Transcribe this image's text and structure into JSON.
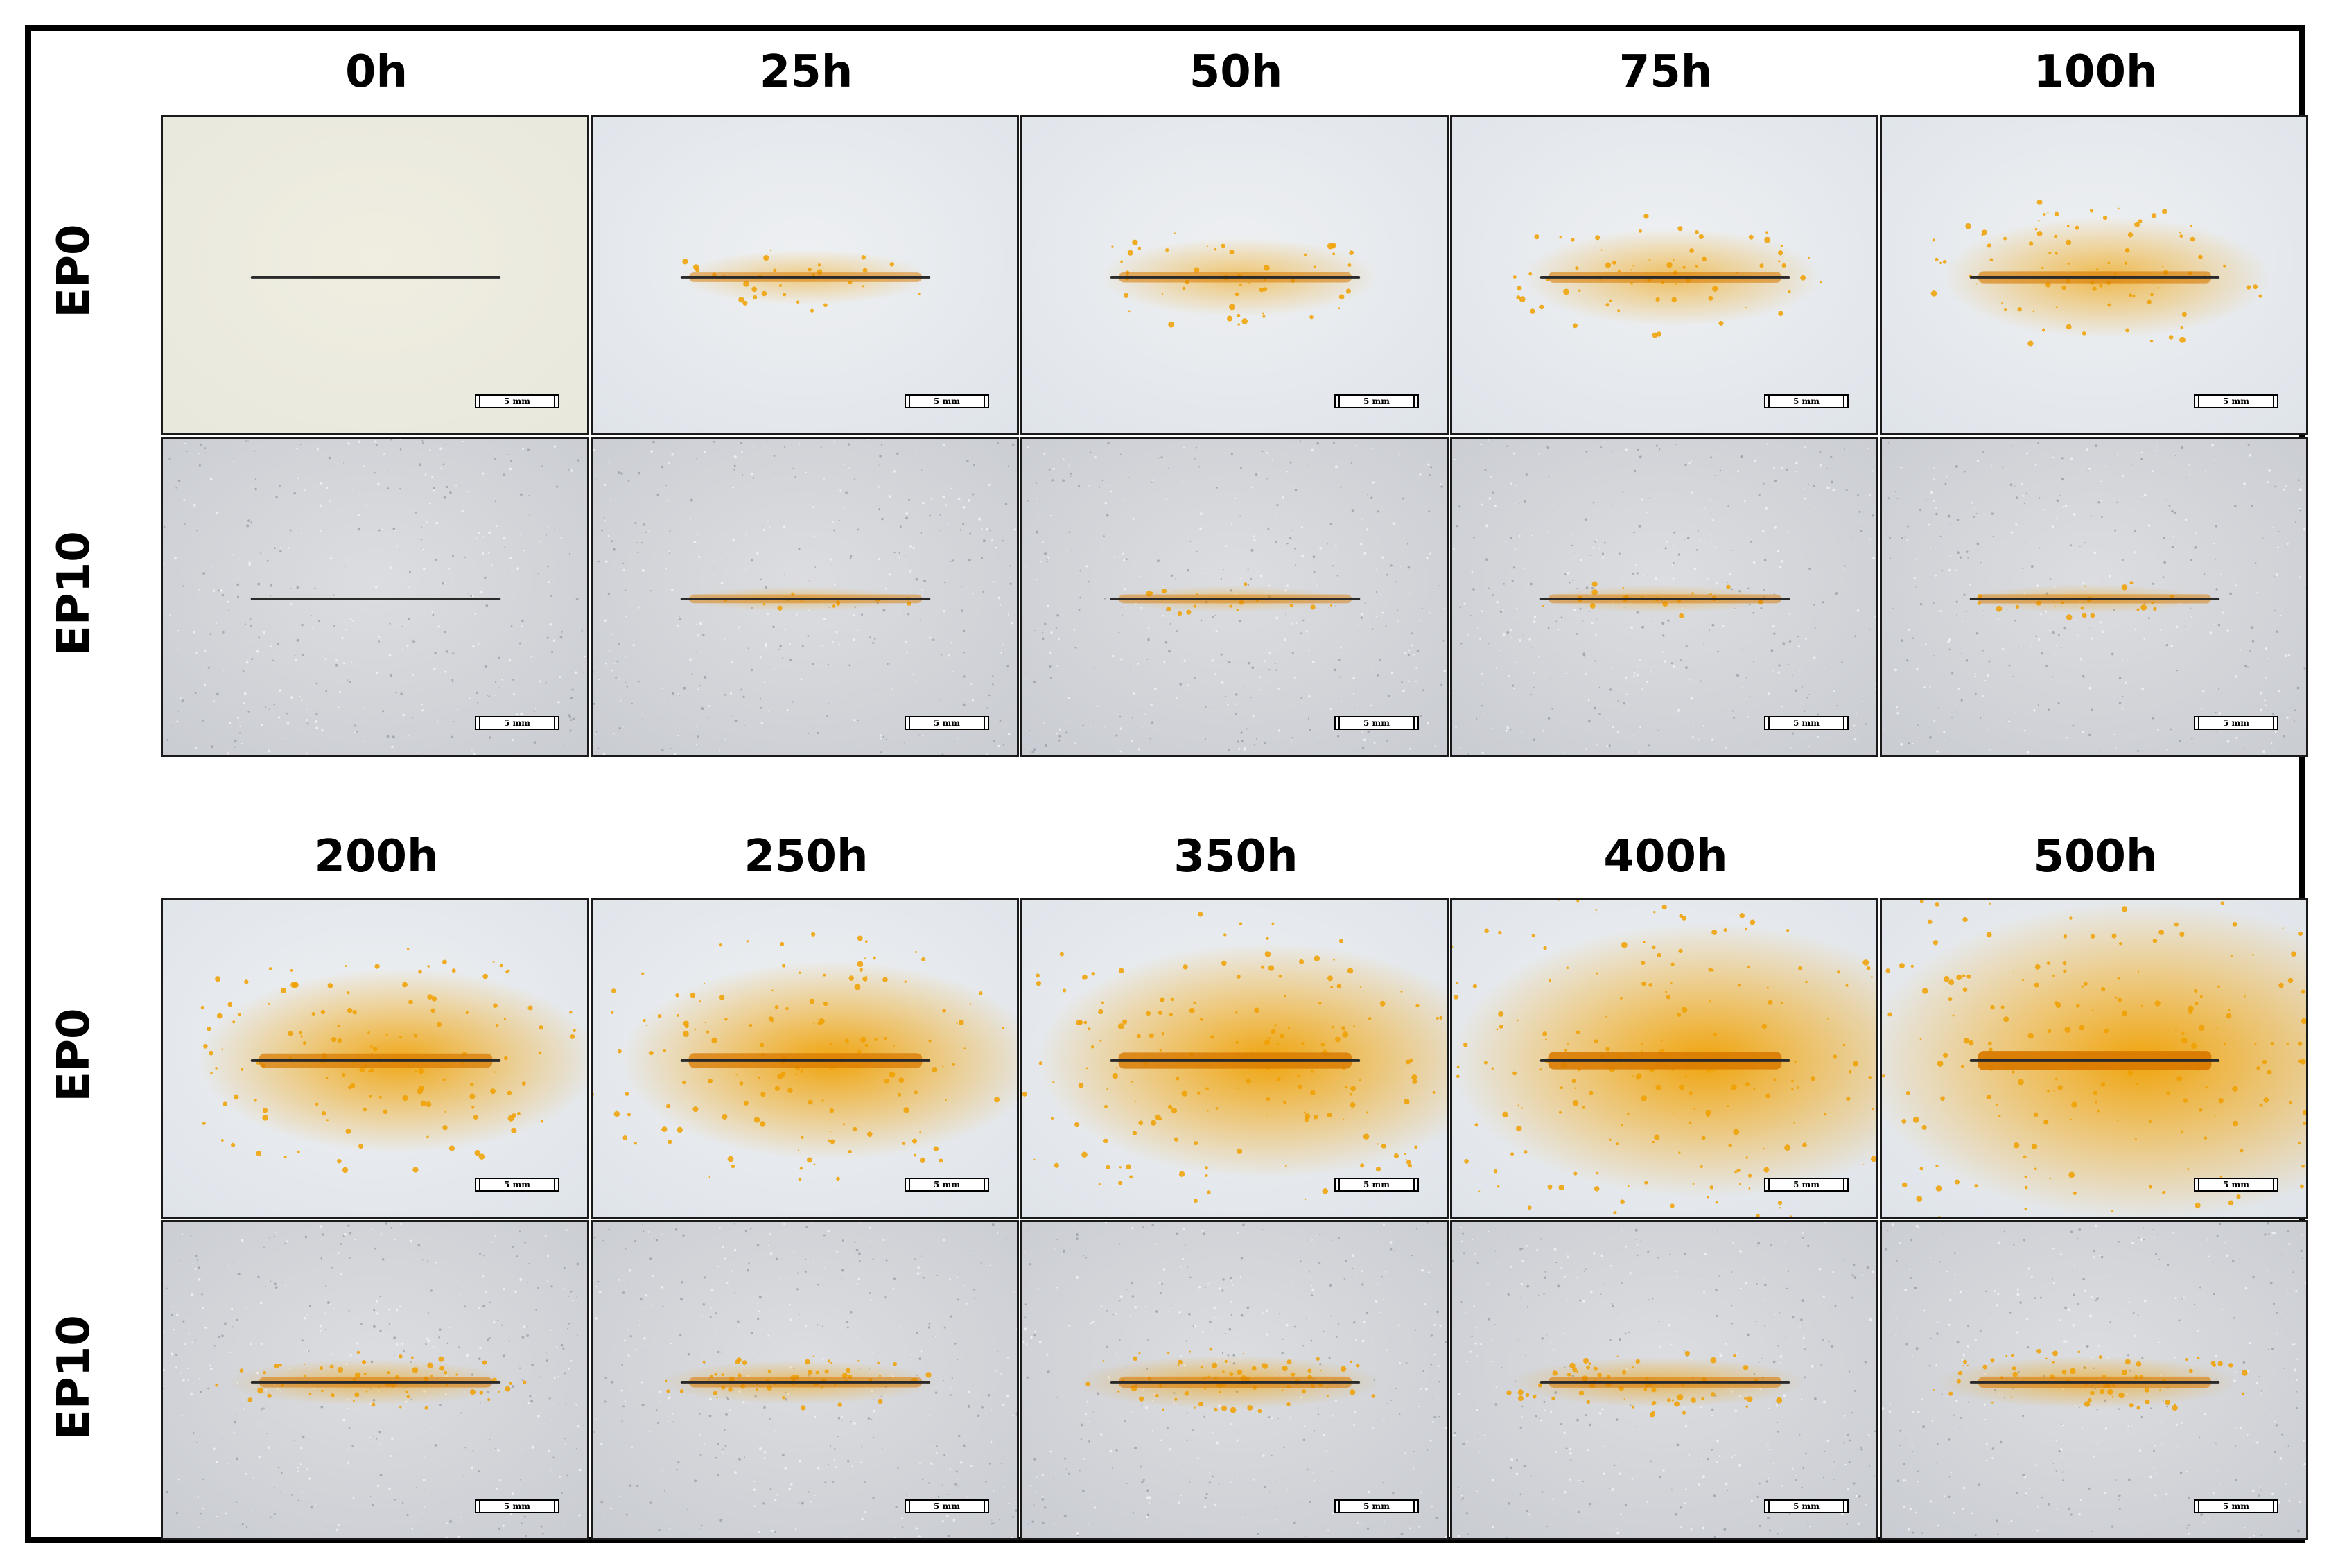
{
  "figure": {
    "blocks": [
      {
        "times": [
          "0h",
          "25h",
          "50h",
          "75h",
          "100h"
        ],
        "rows": [
          {
            "label": "EP0",
            "corrosion": [
              0.0,
              0.12,
              0.2,
              0.26,
              0.34
            ]
          },
          {
            "label": "EP10",
            "corrosion": [
              0.0,
              0.05,
              0.06,
              0.07,
              0.08
            ]
          }
        ]
      },
      {
        "times": [
          "200h",
          "250h",
          "350h",
          "400h",
          "500h"
        ],
        "rows": [
          {
            "label": "EP0",
            "corrosion": [
              0.55,
              0.6,
              0.72,
              0.85,
              1.0
            ]
          },
          {
            "label": "EP10",
            "corrosion": [
              0.22,
              0.2,
              0.28,
              0.25,
              0.27
            ]
          }
        ]
      }
    ],
    "scale_bar": "5 mm",
    "colors": {
      "rust": "#f0a000",
      "rust_dark": "#d97a00",
      "scratch": "#2a2a2a",
      "ep0_surface": "#dfe4ea",
      "ep10_surface": "#c9ccd2"
    }
  }
}
